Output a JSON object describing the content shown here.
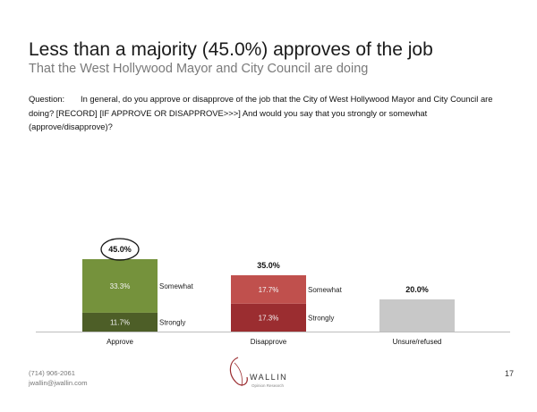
{
  "header": {
    "title": "Less than a majority (45.0%) approves of the job",
    "subtitle": "That the West Hollywood Mayor and City Council are doing"
  },
  "question": {
    "label": "Question:",
    "text": "In general, do you approve or disapprove of the job that the City of West Hollywood Mayor and City Council are doing? [RECORD] [IF APPROVE OR DISAPPROVE>>>] And would you say that you strongly or somewhat (approve/disapprove)?"
  },
  "chart_data": {
    "type": "bar",
    "stacked": true,
    "categories": [
      "Approve",
      "Disapprove",
      "Unsure/refused"
    ],
    "series": [
      {
        "name": "Strongly",
        "values": [
          11.7,
          17.3,
          null
        ]
      },
      {
        "name": "Somewhat",
        "values": [
          33.3,
          17.7,
          null
        ]
      },
      {
        "name": "",
        "values": [
          null,
          null,
          20.0
        ]
      }
    ],
    "totals": [
      "45.0%",
      "35.0%",
      "20.0%"
    ],
    "segment_labels": [
      {
        "category": "Approve",
        "strongly": "11.7%",
        "somewhat": "33.3%"
      },
      {
        "category": "Disapprove",
        "strongly": "17.3%",
        "somewhat": "17.7%"
      }
    ],
    "highlighted_total": "45.0%",
    "colors": {
      "approve_strongly": "#4d5e27",
      "approve_somewhat": "#75923c",
      "disapprove_strongly": "#9b2d30",
      "disapprove_somewhat": "#c0504d",
      "unsure": "#c8c8c8"
    },
    "grid": false,
    "ylim": [
      0,
      50
    ]
  },
  "footer": {
    "phone": "(714) 906-2061",
    "email": "jwallin@jwallin.com",
    "logo_name": "WALLIN",
    "logo_tagline": "Opinion Research",
    "page_number": "17"
  }
}
